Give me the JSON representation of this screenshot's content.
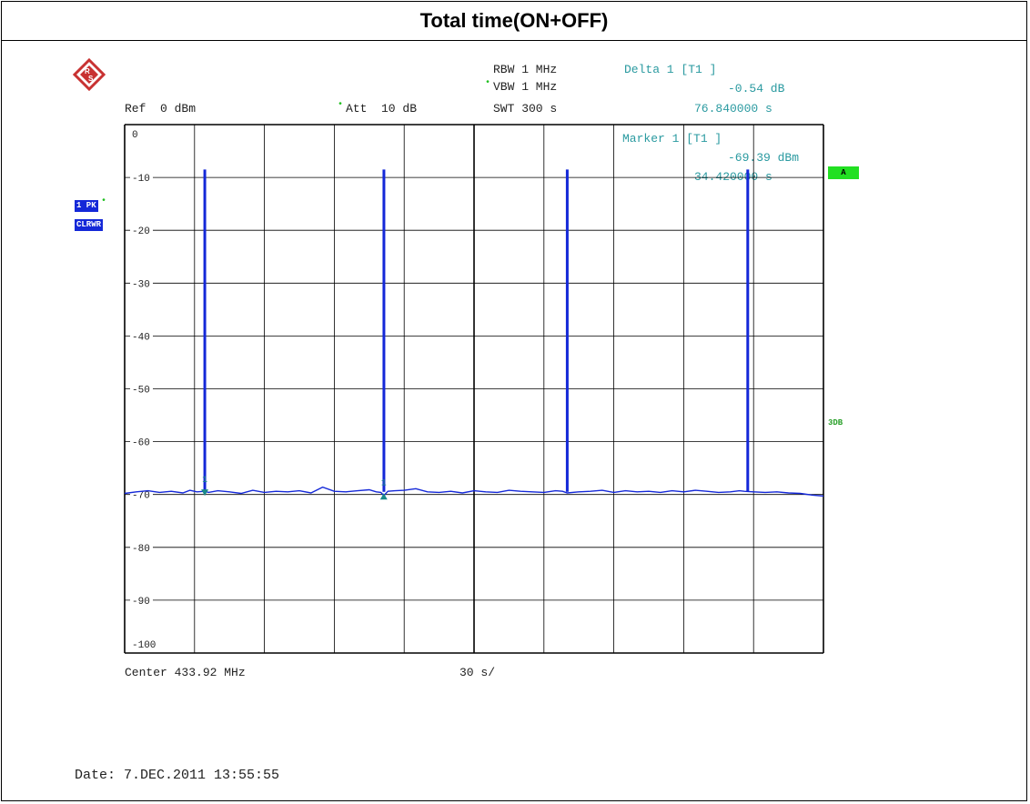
{
  "page": {
    "title": "Total time(ON+OFF)"
  },
  "header": {
    "rbw": "RBW 1 MHz",
    "vbw": "VBW 1 MHz",
    "swt": "SWT 300 s",
    "ref": "Ref  0 dBm",
    "att": "Att  10 dB",
    "delta_title": "Delta 1 [T1 ]",
    "delta_level": "-0.54 dB",
    "delta_time": "76.840000 s",
    "marker_title": "Marker 1 [T1 ]",
    "marker_level": "-69.39 dBm",
    "marker_time": "34.420000 s"
  },
  "side": {
    "trace_mode": "1 PK",
    "trace_clear": "CLRWR",
    "flag_a": "A",
    "line_3db": "3DB"
  },
  "footer": {
    "center": "Center 433.92 MHz",
    "span_per_div": "30 s/",
    "date": "Date: 7.DEC.2011  13:55:55"
  },
  "colors": {
    "trace": "#1428d8",
    "grid": "#000000",
    "marker": "#1a8a8a",
    "annotation": "#2a9aa0"
  },
  "chart_data": {
    "type": "line",
    "title": "",
    "xlabel": "",
    "ylabel": "",
    "xlim": [
      0,
      300
    ],
    "ylim": [
      -100,
      0
    ],
    "x_divisions": 10,
    "y_ticks": [
      0,
      -10,
      -20,
      -30,
      -40,
      -50,
      -60,
      -70,
      -80,
      -90,
      -100
    ],
    "tick_labels": [
      "0",
      "-10",
      "-20",
      "-30",
      "-40",
      "-50",
      "-60",
      "-70",
      "-80",
      "-90",
      "-100"
    ],
    "grid": true,
    "noise_floor_dbm": -69.5,
    "series": [
      {
        "x": [
          0,
          5,
          10,
          15,
          20,
          25,
          28,
          31,
          34.4,
          36,
          40,
          45,
          50,
          55,
          60,
          65,
          70,
          75,
          80,
          85,
          90,
          95,
          100,
          105,
          108,
          110,
          111.3,
          113,
          116,
          120,
          125,
          130,
          135,
          140,
          145,
          150,
          155,
          160,
          165,
          170,
          175,
          180,
          185,
          188,
          190,
          195,
          200,
          205,
          210,
          215,
          220,
          225,
          230,
          235,
          240,
          245,
          250,
          255,
          260,
          264,
          266,
          270,
          275,
          280,
          285,
          290,
          295,
          300
        ],
        "y": [
          -69.8,
          -69.5,
          -69.3,
          -69.6,
          -69.4,
          -69.7,
          -69.2,
          -69.5,
          -69.4,
          -69.6,
          -69.3,
          -69.5,
          -69.8,
          -69.2,
          -69.6,
          -69.4,
          -69.5,
          -69.3,
          -69.7,
          -68.6,
          -69.4,
          -69.5,
          -69.3,
          -69.1,
          -69.5,
          -69.6,
          -70.2,
          -69.4,
          -69.3,
          -69.2,
          -68.9,
          -69.5,
          -69.6,
          -69.4,
          -69.7,
          -69.3,
          -69.5,
          -69.6,
          -69.2,
          -69.4,
          -69.5,
          -69.6,
          -69.3,
          -69.4,
          -69.7,
          -69.5,
          -69.4,
          -69.2,
          -69.6,
          -69.3,
          -69.5,
          -69.4,
          -69.6,
          -69.3,
          -69.5,
          -69.2,
          -69.4,
          -69.6,
          -69.5,
          -69.3,
          -69.4,
          -69.5,
          -69.6,
          -69.5,
          -69.7,
          -69.8,
          -70.1,
          -70.3
        ]
      }
    ],
    "pulses": [
      {
        "x": 34.4,
        "peak_dbm": -8.5
      },
      {
        "x": 111.3,
        "peak_dbm": -8.5
      },
      {
        "x": 190.0,
        "peak_dbm": -8.5
      },
      {
        "x": 267.5,
        "peak_dbm": -8.5
      }
    ],
    "markers": [
      {
        "label": "1",
        "x": 34.4,
        "y": -69.39,
        "shape": "down"
      },
      {
        "label": "1",
        "x": 111.24,
        "y": -69.93,
        "shape": "up"
      }
    ]
  }
}
